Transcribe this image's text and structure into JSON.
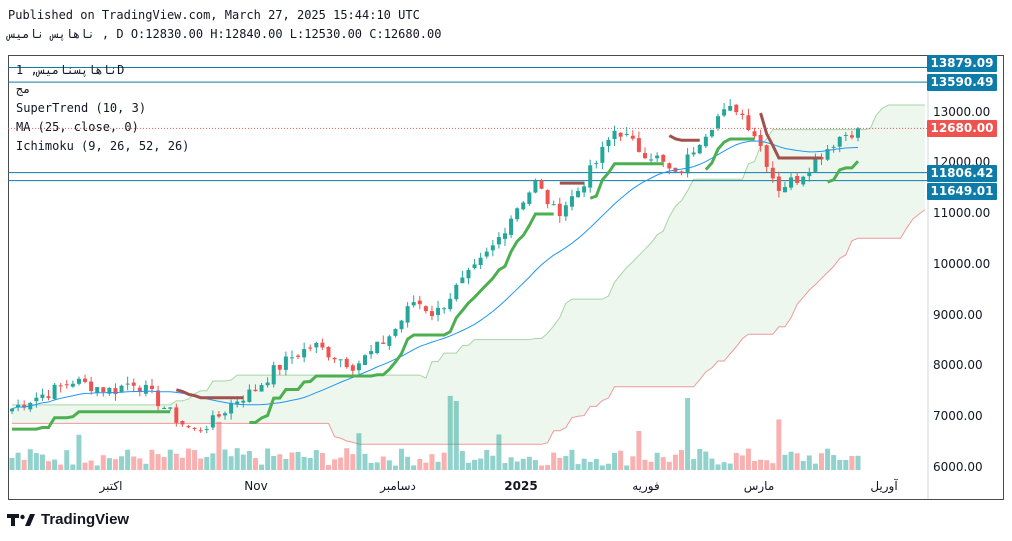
{
  "header": {
    "published": "Published on TradingView.com, March 27, 2025 15:44:10 UTC",
    "ohlc": "ناهاپس ناميس , D O:12830.00 H:12840.00 L:12530.00 C:12680.00"
  },
  "legend": {
    "symbol": "ناهاپسناميس, 1D",
    "sub": "مج",
    "supertrend": "SuperTrend (10, 3)",
    "ma": "MA (25, close, 0)",
    "ichimoku": "Ichimoku (9, 26, 52, 26)"
  },
  "price_labels": {
    "l1": "13879.09",
    "l2": "13590.49",
    "last": "12680.00",
    "l3": "11806.42",
    "l4": "11649.01"
  },
  "y_ticks": [
    "13000.00",
    "12000.00",
    "11000.00",
    "10000.00",
    "9000.00",
    "8000.00",
    "7000.00",
    "6000.00"
  ],
  "x_labels": [
    "اکتبر",
    "Nov",
    "دسامبر",
    "2025",
    "فوريه",
    "مارس",
    "آوريل"
  ],
  "brand": "TradingView",
  "colors": {
    "up": "#26a69a",
    "down": "#ef5350",
    "supertrend_up": "#4caf50",
    "supertrend_down": "#a0524d",
    "ma": "#2196f3",
    "lines": "#0e7ca8"
  },
  "chart_data": {
    "type": "candlestick",
    "title": "ناهاپسناميس, 1D",
    "ylim": [
      6000,
      14000
    ],
    "horizontal_levels": [
      13879.09,
      13590.49,
      11806.42,
      11649.01
    ],
    "last_price": 12680.0,
    "close_path": [
      7150,
      7350,
      7500,
      7700,
      7600,
      7500,
      7700,
      7400,
      7000,
      6700,
      6900,
      7300,
      7500,
      7900,
      8200,
      8400,
      8200,
      8000,
      8300,
      8700,
      9300,
      9000,
      9500,
      9900,
      10400,
      11100,
      11600,
      11000,
      11400,
      12000,
      12700,
      12300,
      12100,
      11700,
      12400,
      12900,
      13100,
      12500,
      11500,
      11700,
      12100,
      12500,
      12680
    ],
    "series": [
      {
        "name": "SuperTrend (10, 3)"
      },
      {
        "name": "MA (25, close, 0)"
      },
      {
        "name": "Ichimoku (9, 26, 52, 26)"
      }
    ]
  }
}
